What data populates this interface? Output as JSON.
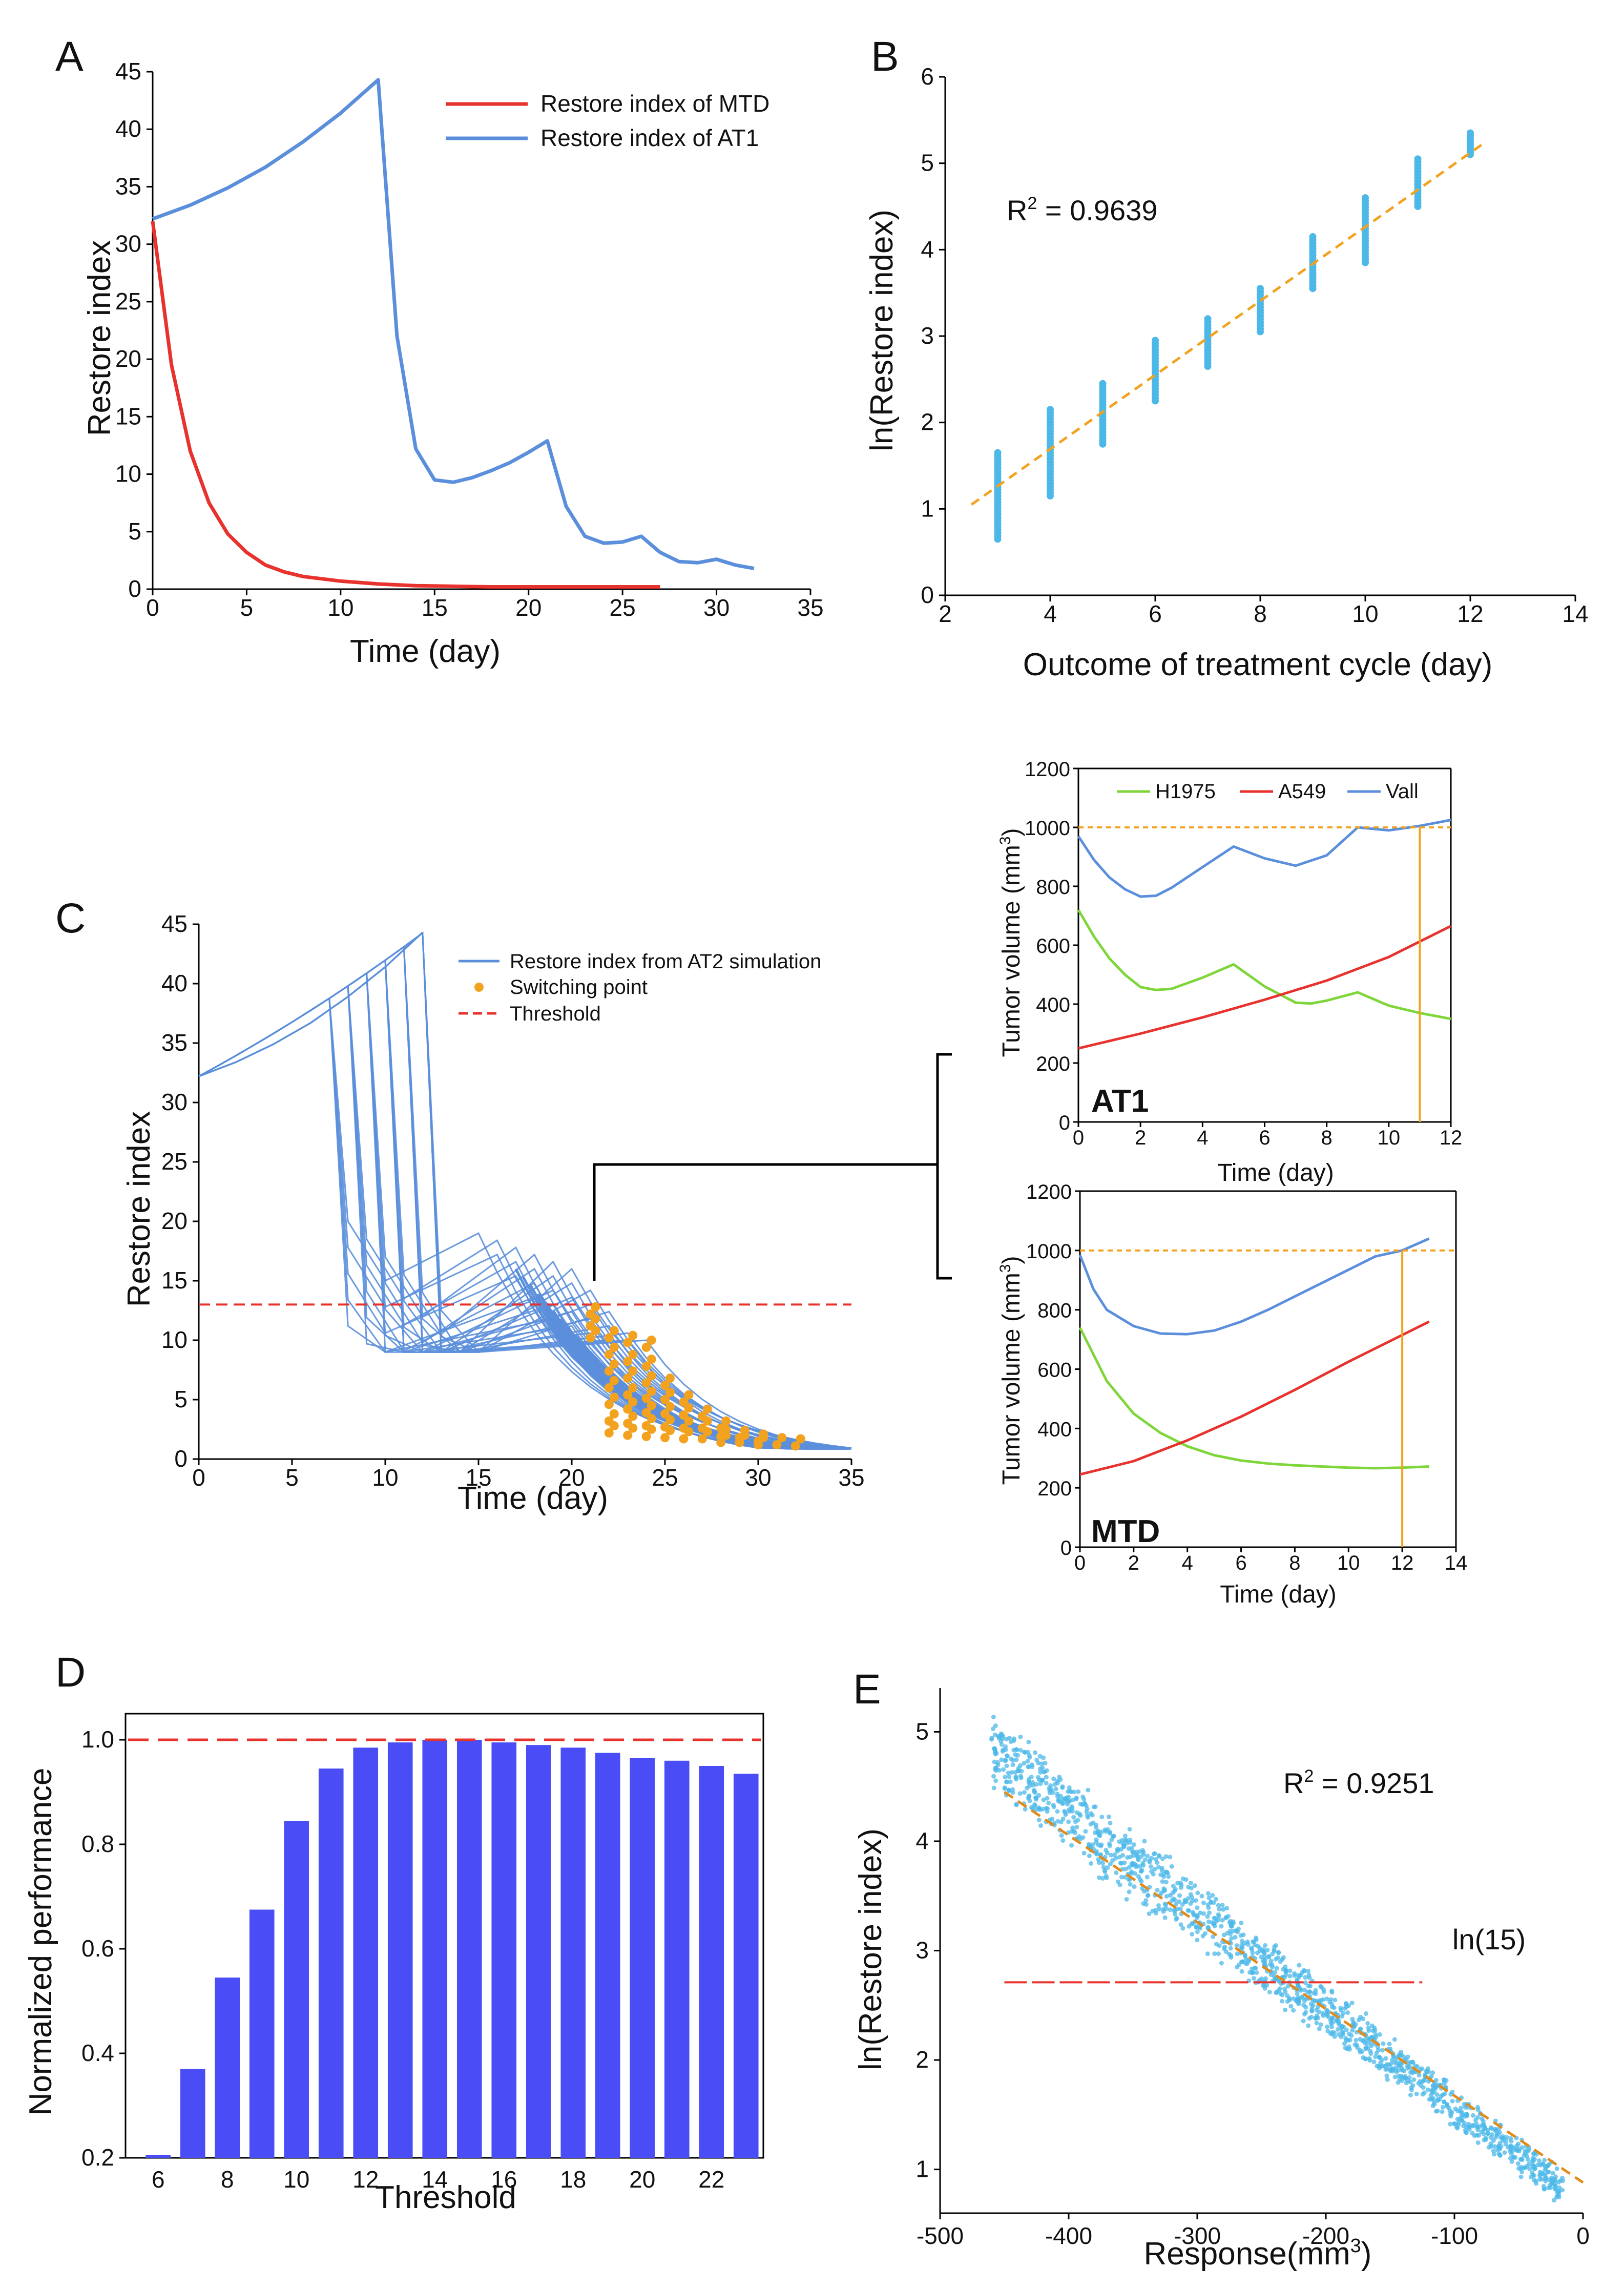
{
  "panel_labels": {
    "a": "A",
    "b": "B",
    "c": "C",
    "d": "D",
    "e": "E"
  },
  "colors": {
    "red": "#e8322e",
    "blue": "#5b8fdc",
    "cyan": "#4cb8e8",
    "orange": "#f2a21e",
    "green": "#7fd63a",
    "bar": "#4a4cf5",
    "dashed_red": "#e8322e",
    "fit_orange": "#e28a1a"
  },
  "chart_data": [
    {
      "id": "A",
      "type": "line",
      "xlabel": "Time (day)",
      "ylabel": "Restore index",
      "xlim": [
        0,
        35
      ],
      "ylim": [
        0,
        45
      ],
      "xticks": [
        "0",
        "5",
        "10",
        "15",
        "20",
        "25",
        "30",
        "35"
      ],
      "yticks": [
        "0",
        "5",
        "10",
        "15",
        "20",
        "25",
        "30",
        "35",
        "40",
        "45"
      ],
      "legend": [
        "Restore index of MTD",
        "Restore index of AT1"
      ],
      "series": [
        {
          "name": "Restore index of MTD",
          "x": [
            0,
            1,
            2,
            3,
            4,
            5,
            6,
            7,
            8,
            10,
            12,
            14,
            16,
            18,
            20,
            22,
            24,
            27
          ],
          "y": [
            32,
            19.5,
            12,
            7.5,
            4.8,
            3.2,
            2.1,
            1.5,
            1.1,
            0.7,
            0.45,
            0.3,
            0.25,
            0.2,
            0.2,
            0.2,
            0.2,
            0.2
          ]
        },
        {
          "name": "Restore index of AT1",
          "x": [
            0,
            2,
            4,
            6,
            8,
            10,
            12,
            13,
            14,
            15,
            16,
            17,
            18,
            19,
            20,
            21,
            22,
            23,
            24,
            25,
            26,
            27,
            28,
            29,
            30,
            31,
            32
          ],
          "y": [
            32.2,
            33.4,
            34.9,
            36.7,
            38.9,
            41.4,
            44.3,
            22,
            12.2,
            9.5,
            9.3,
            9.7,
            10.3,
            11.0,
            11.9,
            12.9,
            7.2,
            4.6,
            4.0,
            4.1,
            4.6,
            3.2,
            2.4,
            2.3,
            2.6,
            2.1,
            1.8
          ]
        }
      ]
    },
    {
      "id": "B",
      "type": "scatter",
      "xlabel": "Outcome of treatment cycle (day)",
      "ylabel": "ln(Restore index)",
      "xlim": [
        2,
        14
      ],
      "ylim": [
        0,
        6
      ],
      "xticks": [
        "2",
        "4",
        "6",
        "8",
        "10",
        "12",
        "14"
      ],
      "yticks": [
        "0",
        "1",
        "2",
        "3",
        "4",
        "5",
        "6"
      ],
      "annotation_prefix": "R",
      "annotation_sup": "2",
      "annotation_value": " = 0.9639",
      "fit_line": {
        "x": [
          2.5,
          12.3
        ],
        "y": [
          1.05,
          5.25
        ]
      },
      "groups": [
        {
          "x": 3,
          "ymin": 0.65,
          "ymax": 1.65
        },
        {
          "x": 4,
          "ymin": 1.15,
          "ymax": 2.15
        },
        {
          "x": 5,
          "ymin": 1.75,
          "ymax": 2.45
        },
        {
          "x": 6,
          "ymin": 2.25,
          "ymax": 2.95
        },
        {
          "x": 7,
          "ymin": 2.65,
          "ymax": 3.2
        },
        {
          "x": 8,
          "ymin": 3.05,
          "ymax": 3.55
        },
        {
          "x": 9,
          "ymin": 3.55,
          "ymax": 4.15
        },
        {
          "x": 10,
          "ymin": 3.85,
          "ymax": 4.6
        },
        {
          "x": 11,
          "ymin": 4.5,
          "ymax": 5.05
        },
        {
          "x": 12,
          "ymin": 5.1,
          "ymax": 5.35
        }
      ]
    },
    {
      "id": "C",
      "type": "line",
      "xlabel": "Time (day)",
      "ylabel": "Restore index",
      "xlim": [
        0,
        35
      ],
      "ylim": [
        0,
        45
      ],
      "xticks": [
        "0",
        "5",
        "10",
        "15",
        "20",
        "25",
        "30",
        "35"
      ],
      "yticks": [
        "0",
        "5",
        "10",
        "15",
        "20",
        "25",
        "30",
        "35",
        "40",
        "45"
      ],
      "legend": [
        "Restore index from AT2 simulation",
        "Switching point",
        "Threshold"
      ],
      "threshold": 13,
      "base_curve": {
        "x": [
          0,
          2,
          4,
          6,
          8,
          10,
          12
        ],
        "y": [
          32.2,
          33.4,
          34.9,
          36.7,
          38.9,
          41.4,
          44.3
        ]
      },
      "switch_days": [
        7,
        8,
        9,
        10,
        11,
        12
      ],
      "switching_points": [
        {
          "x": 21,
          "y": [
            12.2,
            11.2,
            10.2
          ]
        },
        {
          "x": 22,
          "y": [
            10.2,
            8.8,
            7.4,
            6.0,
            4.6,
            3.2,
            2.2
          ]
        },
        {
          "x": 23,
          "y": [
            9.8,
            8.2,
            6.8,
            5.4,
            4.2,
            3.0,
            2.0
          ]
        },
        {
          "x": 24,
          "y": [
            9.4,
            7.8,
            6.4,
            5.1,
            3.9,
            2.8,
            1.9
          ]
        },
        {
          "x": 25,
          "y": [
            6.2,
            5.0,
            3.8,
            2.7,
            1.8
          ]
        },
        {
          "x": 26,
          "y": [
            4.8,
            3.7,
            2.6,
            1.7
          ]
        },
        {
          "x": 27,
          "y": [
            3.6,
            2.6,
            1.7
          ]
        },
        {
          "x": 28,
          "y": [
            2.6,
            1.9,
            1.4
          ]
        },
        {
          "x": 29,
          "y": [
            1.8,
            1.4
          ]
        },
        {
          "x": 30,
          "y": [
            1.5,
            1.2
          ]
        },
        {
          "x": 31,
          "y": [
            1.2
          ]
        },
        {
          "x": 32,
          "y": [
            1.1
          ]
        }
      ]
    },
    {
      "id": "C-AT1",
      "type": "line",
      "tag": "AT1",
      "xlabel": "Time (day)",
      "ylabel_main": "Tumor volume (mm",
      "ylabel_sup": "3",
      "ylabel_end": ")",
      "xlim": [
        0,
        12
      ],
      "ylim": [
        0,
        1200
      ],
      "xticks": [
        "0",
        "2",
        "4",
        "6",
        "8",
        "10",
        "12"
      ],
      "yticks": [
        "0",
        "200",
        "400",
        "600",
        "800",
        "1000",
        "1200"
      ],
      "legend": [
        "H1975",
        "A549",
        "Vall"
      ],
      "threshold_volume": 1000,
      "marker_day": 11,
      "series": [
        {
          "name": "H1975",
          "x": [
            0,
            0.5,
            1,
            1.5,
            2,
            2.5,
            3,
            4,
            5,
            6,
            7,
            7.5,
            8,
            9,
            10,
            11,
            12
          ],
          "y": [
            720,
            630,
            555,
            500,
            458,
            448,
            452,
            490,
            535,
            460,
            405,
            402,
            412,
            440,
            395,
            370,
            350
          ]
        },
        {
          "name": "A549",
          "x": [
            0,
            2,
            4,
            6,
            8,
            10,
            12
          ],
          "y": [
            250,
            300,
            355,
            415,
            480,
            560,
            665
          ]
        },
        {
          "name": "Vall",
          "x": [
            0,
            0.5,
            1,
            1.5,
            2,
            2.5,
            3,
            4,
            5,
            6,
            7,
            8,
            9,
            10,
            11,
            12
          ],
          "y": [
            970,
            890,
            830,
            790,
            765,
            768,
            795,
            865,
            935,
            895,
            870,
            905,
            1000,
            990,
            1005,
            1025
          ]
        }
      ]
    },
    {
      "id": "C-MTD",
      "type": "line",
      "tag": "MTD",
      "xlabel": "Time (day)",
      "ylabel_main": "Tumor volume (mm",
      "ylabel_sup": "3",
      "ylabel_end": ")",
      "xlim": [
        0,
        14
      ],
      "ylim": [
        0,
        1200
      ],
      "xticks": [
        "0",
        "2",
        "4",
        "6",
        "8",
        "10",
        "12",
        "14"
      ],
      "yticks": [
        "0",
        "200",
        "400",
        "600",
        "800",
        "1000",
        "1200"
      ],
      "threshold_volume": 1000,
      "marker_day": 12,
      "series": [
        {
          "name": "H1975",
          "x": [
            0,
            1,
            2,
            3,
            4,
            5,
            6,
            7,
            8,
            9,
            10,
            11,
            12,
            13
          ],
          "y": [
            740,
            560,
            450,
            385,
            340,
            310,
            292,
            282,
            276,
            272,
            268,
            266,
            268,
            272
          ]
        },
        {
          "name": "A549",
          "x": [
            0,
            2,
            4,
            6,
            8,
            10,
            12,
            13
          ],
          "y": [
            245,
            290,
            360,
            440,
            530,
            625,
            715,
            760
          ]
        },
        {
          "name": "Vall",
          "x": [
            0,
            0.5,
            1,
            2,
            3,
            4,
            5,
            6,
            7,
            8,
            9,
            10,
            11,
            12,
            13
          ],
          "y": [
            985,
            870,
            800,
            745,
            720,
            718,
            730,
            760,
            800,
            845,
            890,
            935,
            980,
            1000,
            1040
          ]
        }
      ]
    },
    {
      "id": "D",
      "type": "bar",
      "xlabel": "Threshold",
      "ylabel": "Normalized performance",
      "ylim": [
        0.2,
        1.05
      ],
      "xticks": [
        "6",
        "8",
        "10",
        "12",
        "14",
        "16",
        "18",
        "20",
        "22"
      ],
      "yticks": [
        "0.2",
        "0.4",
        "0.6",
        "0.8",
        "1.0"
      ],
      "reference": 1.0,
      "categories": [
        6,
        7,
        8,
        9,
        10,
        11,
        12,
        13,
        14,
        15,
        16,
        17,
        18,
        19,
        20,
        21,
        22,
        23
      ],
      "values": [
        0.2,
        0.37,
        0.545,
        0.675,
        0.845,
        0.945,
        0.985,
        0.995,
        1.0,
        1.0,
        0.995,
        0.99,
        0.985,
        0.975,
        0.965,
        0.96,
        0.95,
        0.935
      ]
    },
    {
      "id": "E",
      "type": "scatter",
      "xlabel_main": "Response(mm",
      "xlabel_sup": "3",
      "xlabel_end": ")",
      "ylabel": "ln(Restore index)",
      "xlim": [
        -500,
        0
      ],
      "ylim": [
        0.6,
        5.4
      ],
      "xticks": [
        "-500",
        "-400",
        "-300",
        "-200",
        "-100",
        "0"
      ],
      "yticks": [
        "1",
        "2",
        "3",
        "4",
        "5"
      ],
      "annotation_prefix": "R",
      "annotation_sup": "2",
      "annotation_value": " = 0.9251",
      "reference_label": "ln(15)",
      "reference_value": 2.71,
      "fit_line": {
        "x": [
          -450,
          0
        ],
        "y": [
          4.45,
          0.88
        ]
      },
      "cloud": {
        "x_start": -460,
        "x_end": -15,
        "band_lower": [
          5.2,
          1.0
        ],
        "band_upper": [
          5.05,
          1.0
        ],
        "spread": 0.55
      }
    }
  ]
}
